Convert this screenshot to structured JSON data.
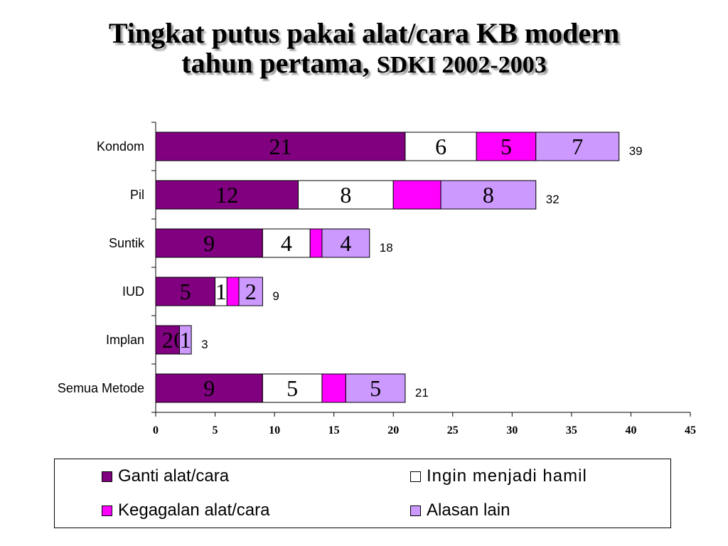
{
  "title_line1": "Tingkat putus pakai alat/cara KB modern",
  "title_line2": "tahun pertama,",
  "title_line2b": "SDKI 2002-2003",
  "chart_data": {
    "type": "bar",
    "orientation": "horizontal",
    "stacked": true,
    "categories": [
      "Kondom",
      "Pil",
      "Suntik",
      "IUD",
      "Implan",
      "Semua Metode"
    ],
    "series": [
      {
        "name": "Ganti alat/cara",
        "color": "#800080",
        "values": [
          21,
          12,
          9,
          5,
          2,
          9
        ],
        "labels": [
          "21",
          "12",
          "9",
          "5",
          "2",
          "9"
        ]
      },
      {
        "name": "Ingin menjadi hamil",
        "color": "#ffffff",
        "values": [
          6,
          8,
          4,
          1,
          0,
          5
        ],
        "labels": [
          "6",
          "8",
          "4",
          "1",
          "0",
          "5"
        ]
      },
      {
        "name": "Kegagalan alat/cara",
        "color": "#ff00ff",
        "values": [
          5,
          4,
          1,
          1,
          0,
          2
        ],
        "labels": [
          "5",
          "",
          "",
          "",
          "",
          ""
        ]
      },
      {
        "name": "Alasan lain",
        "color": "#cc99ff",
        "values": [
          7,
          8,
          4,
          2,
          1,
          5
        ],
        "labels": [
          "7",
          "8",
          "4",
          "2",
          "1",
          "5"
        ]
      }
    ],
    "totals": [
      39,
      32,
      18,
      9,
      3,
      21
    ],
    "xlim": [
      0,
      45
    ],
    "xticks": [
      0,
      5,
      10,
      15,
      20,
      25,
      30,
      35,
      40,
      45
    ],
    "grid": false,
    "legend": "bottom"
  }
}
